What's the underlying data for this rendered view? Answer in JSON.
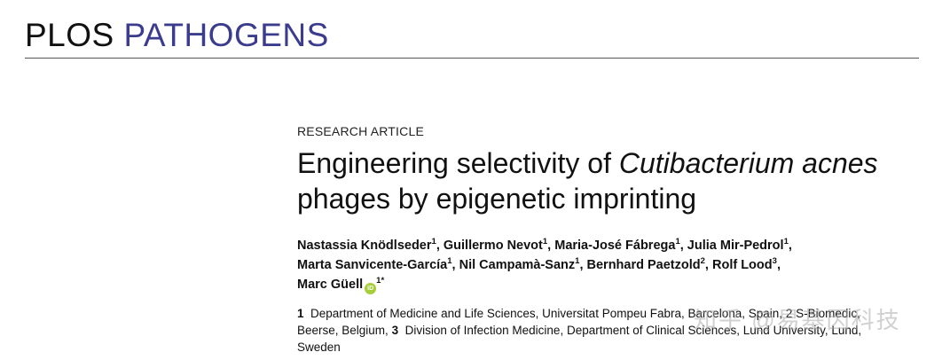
{
  "journal": {
    "name_part1": "PLOS",
    "name_part2": "PATHOGENS",
    "colors": {
      "plos": "#111111",
      "pathogens": "#3c3c8e"
    }
  },
  "article": {
    "type": "RESEARCH ARTICLE",
    "title_part1": "Engineering selectivity of ",
    "title_italic": "Cutibacterium acnes",
    "title_part2": "phages by epigenetic imprinting"
  },
  "authors": [
    {
      "name": "Nastassia Knödlseder",
      "affil": "1"
    },
    {
      "name": "Guillermo Nevot",
      "affil": "1"
    },
    {
      "name": "Maria-José Fábrega",
      "affil": "1"
    },
    {
      "name": "Julia Mir-Pedrol",
      "affil": "1"
    },
    {
      "name": "Marta Sanvicente-García",
      "affil": "1"
    },
    {
      "name": "Nil Campamà-Sanz",
      "affil": "1"
    },
    {
      "name": "Bernhard Paetzold",
      "affil": "2"
    },
    {
      "name": "Rolf Lood",
      "affil": "3"
    },
    {
      "name": "Marc Güell",
      "affil": "1",
      "corresponding": "*",
      "orcid_icon": "orcid-icon"
    }
  ],
  "affiliations": [
    {
      "num": "1",
      "text": "Department of Medicine and Life Sciences, Universitat Pompeu Fabra, Barcelona, Spain, 2 S-Biomedic,"
    },
    {
      "num": "",
      "text": "Beerse, Belgium,"
    },
    {
      "num": "3",
      "text": "Division of Infection Medicine, Department of Clinical Sciences, Lund University, Lund,"
    },
    {
      "num": "",
      "text": "Sweden"
    }
  ],
  "watermark": "知乎 @易基因科技"
}
